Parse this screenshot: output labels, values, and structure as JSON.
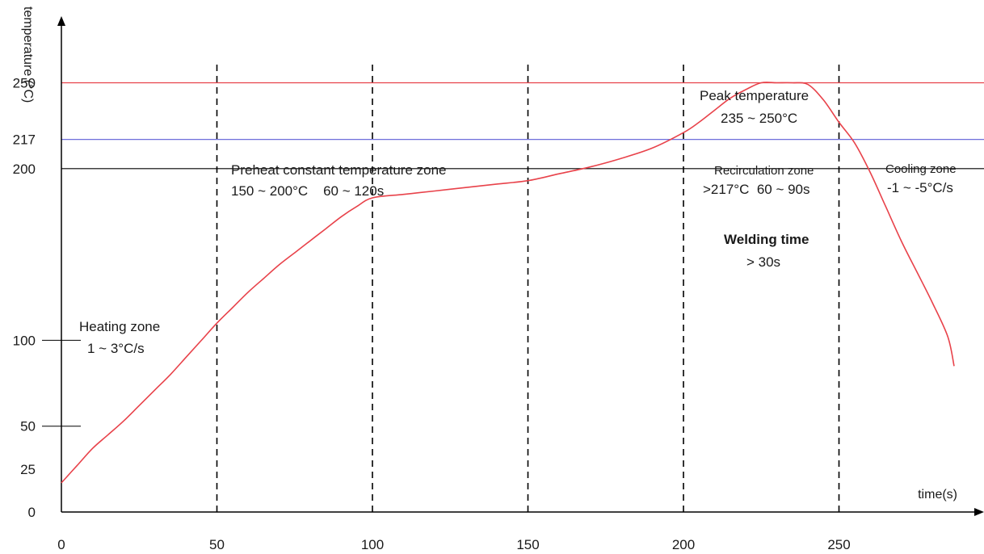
{
  "chart_data": {
    "type": "line",
    "title": "",
    "xlabel": "time(s)",
    "ylabel": "temperature (°C)",
    "xlim": [
      0,
      287
    ],
    "ylim": [
      0,
      270
    ],
    "x_ticks": [
      0,
      50,
      100,
      150,
      200,
      250
    ],
    "y_ticks": [
      0,
      25,
      50,
      100,
      200,
      217,
      250
    ],
    "grid": false,
    "series": [
      {
        "x": [
          0,
          5,
          10,
          15,
          20,
          25,
          30,
          35,
          40,
          45,
          50,
          55,
          60,
          65,
          70,
          75,
          80,
          85,
          90,
          95,
          100,
          110,
          120,
          130,
          140,
          150,
          160,
          170,
          180,
          190,
          200,
          205,
          210,
          215,
          220,
          225,
          230,
          235,
          240,
          245,
          250,
          255,
          260,
          265,
          270,
          275,
          280,
          285,
          287
        ],
        "values": [
          17,
          27,
          37,
          45,
          53,
          62,
          71,
          80,
          90,
          100,
          110,
          119,
          128,
          136,
          144,
          151,
          158,
          165,
          172,
          178,
          183,
          185,
          187,
          189,
          191,
          193,
          197,
          201,
          206,
          212,
          221,
          227,
          234,
          241,
          246,
          250,
          250,
          250,
          249,
          240,
          227,
          215,
          198,
          178,
          158,
          140,
          122,
          102,
          85
        ]
      }
    ],
    "reference_lines": [
      {
        "y": 250,
        "color": "#e8424a"
      },
      {
        "y": 217,
        "color": "#5b5bd6"
      },
      {
        "y": 200,
        "color": "#000000"
      }
    ],
    "zone_boundaries": [
      50,
      100,
      150,
      200,
      250
    ],
    "annotations": [
      {
        "id": "heating-zone",
        "x": 7,
        "y": 126,
        "lines": [
          "Heating zone",
          "1 ~ 3°C/s"
        ]
      },
      {
        "id": "preheat-zone",
        "x": 56,
        "y": 233,
        "lines": [
          "Preheat constant temperature zone",
          "150 ~ 200°C    60 ~ 120s"
        ]
      },
      {
        "id": "peak-temperature",
        "x": 232,
        "y": 273,
        "lines": [
          "Peak temperature",
          "235 ~ 250°C"
        ]
      },
      {
        "id": "recirculation-zone",
        "x": 232,
        "y": 234,
        "lines": [
          "Recirculation zone",
          ">217°C  60 ~ 90s"
        ]
      },
      {
        "id": "cooling-zone",
        "x": 270,
        "y": 234,
        "lines": [
          "Cooling zone",
          "-1 ~ -5°C/s"
        ]
      },
      {
        "id": "welding-time",
        "x": 229,
        "y": 186,
        "lines": [
          "Welding time",
          "> 30s"
        ]
      }
    ],
    "colors": {
      "curve": "#e8424a",
      "axis": "#000000",
      "dashed": "#000000"
    }
  }
}
